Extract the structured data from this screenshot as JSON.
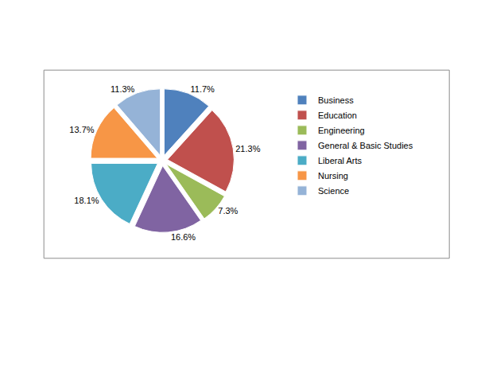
{
  "chart_data": {
    "type": "pie",
    "categories": [
      "Business",
      "Education",
      "Engineering",
      "General & Basic Studies",
      "Liberal Arts",
      "Nursing",
      "Science"
    ],
    "values": [
      11.7,
      21.3,
      7.3,
      16.6,
      18.1,
      13.7,
      11.3
    ],
    "value_labels": [
      "11.7%",
      "21.3%",
      "7.3%",
      "16.6%",
      "18.1%",
      "13.7%",
      "11.3%"
    ],
    "colors": [
      "#4f81bd",
      "#c0504d",
      "#9bbb59",
      "#8064a2",
      "#4bacc6",
      "#f79646",
      "#95b3d7"
    ],
    "data_labels": true,
    "legend": "right"
  }
}
